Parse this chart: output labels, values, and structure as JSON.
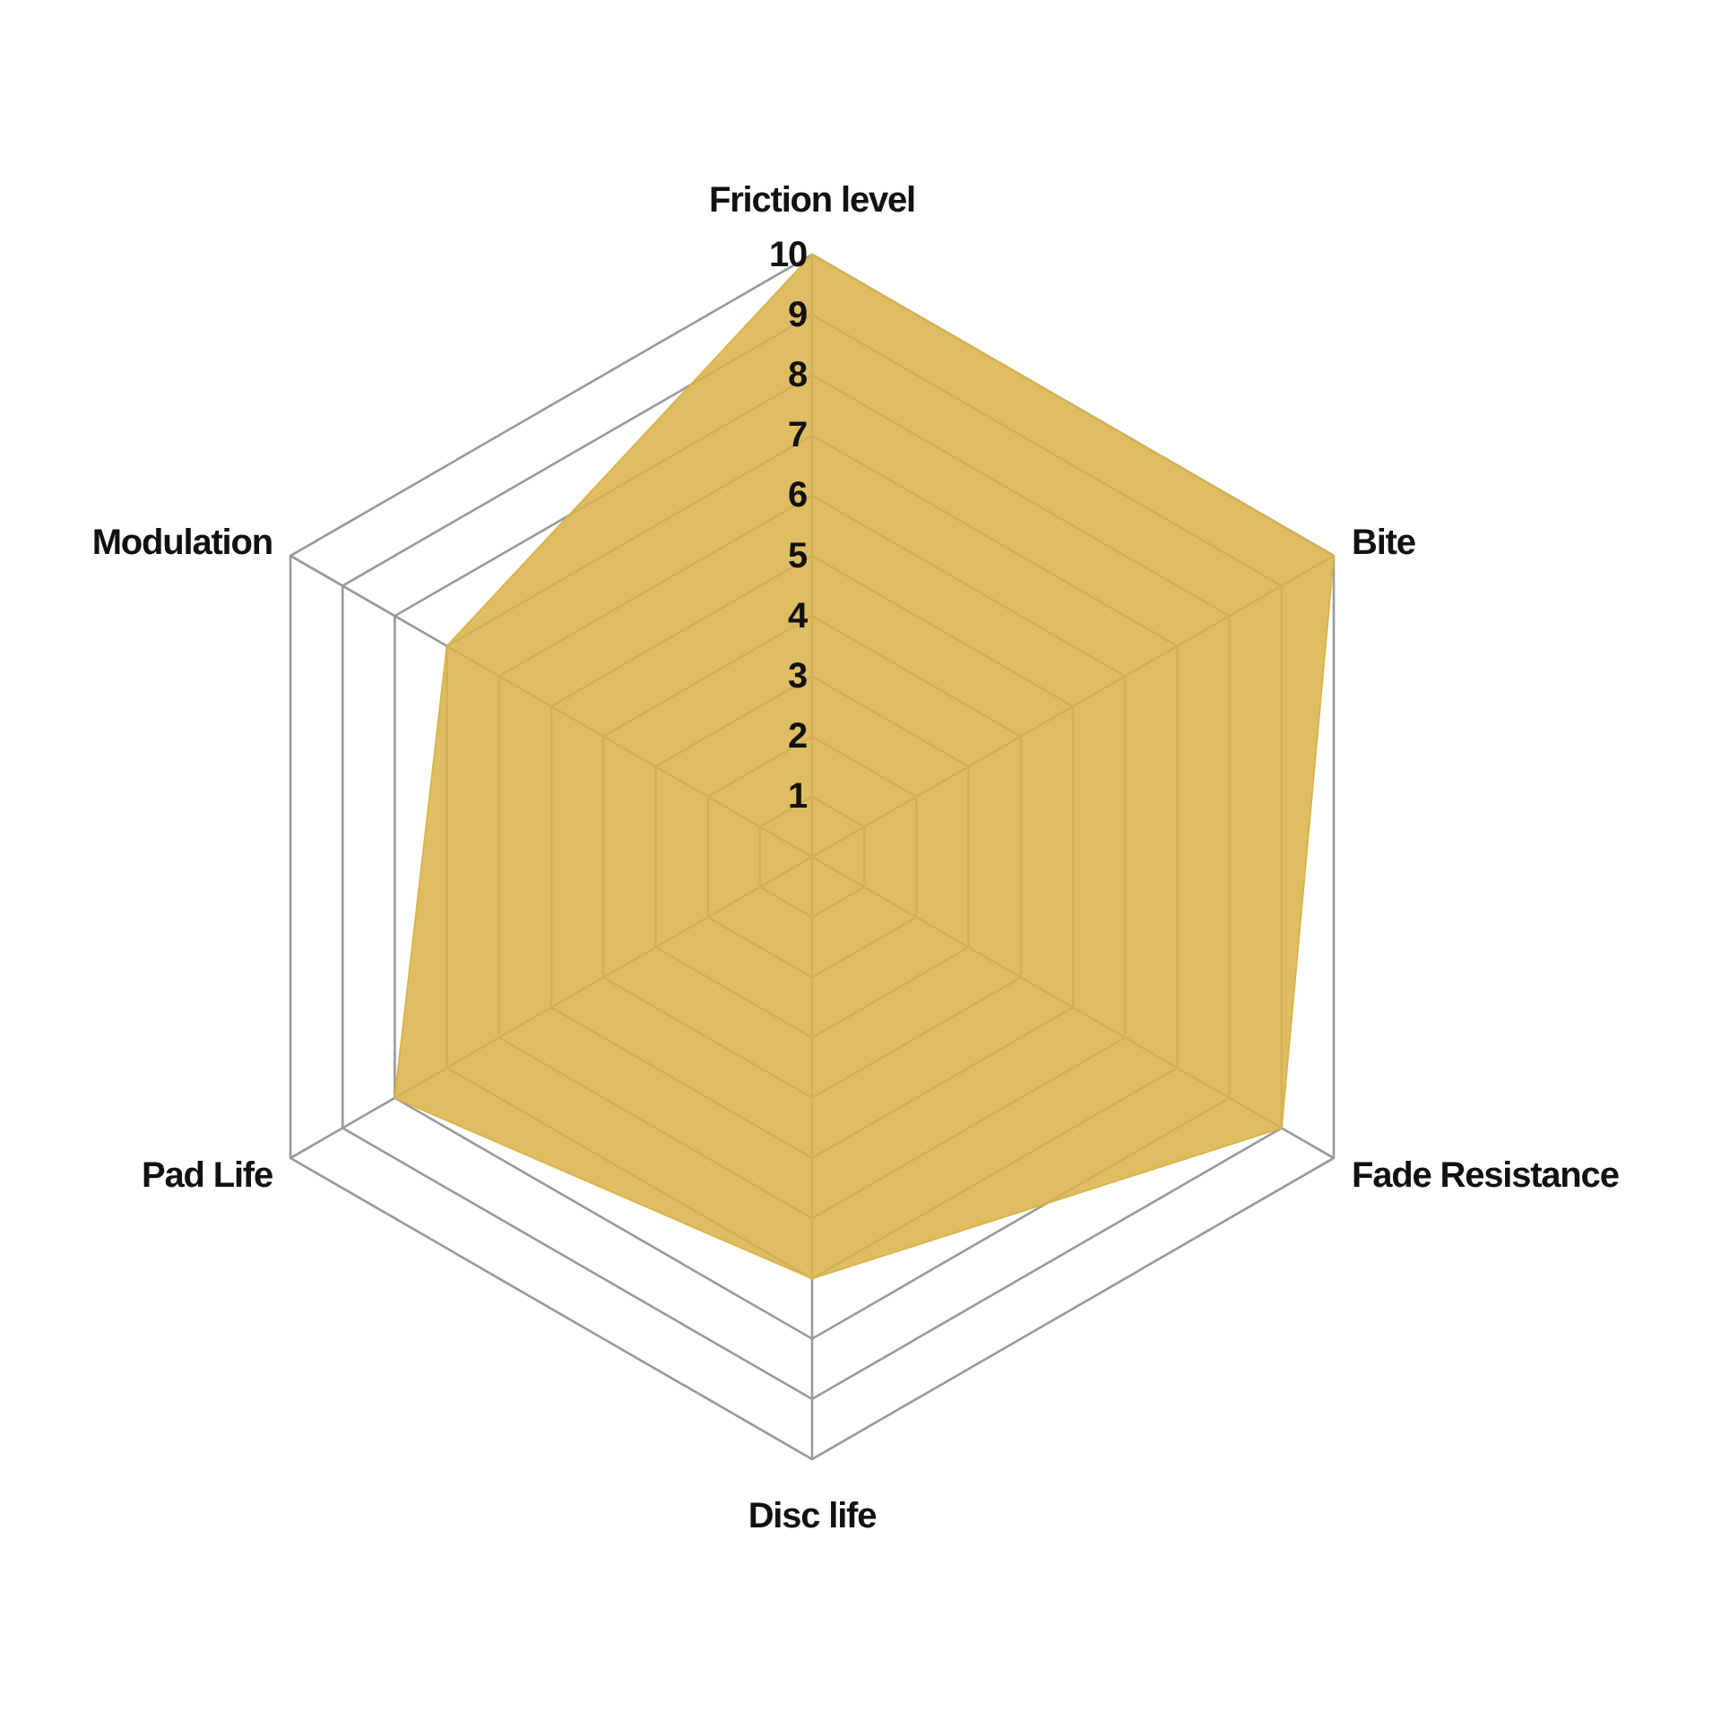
{
  "chart_data": {
    "type": "radar",
    "categories": [
      "Friction level",
      "Bite",
      "Fade Resistance",
      "Disc life",
      "Pad Life",
      "Modulation"
    ],
    "series": [
      {
        "color": "#dbb44c",
        "values": [
          10,
          10,
          9,
          7,
          8,
          7
        ]
      }
    ],
    "ylim": [
      0,
      10
    ],
    "yticks": [
      1,
      2,
      3,
      4,
      5,
      6,
      7,
      8,
      9,
      10
    ],
    "grid": true
  }
}
